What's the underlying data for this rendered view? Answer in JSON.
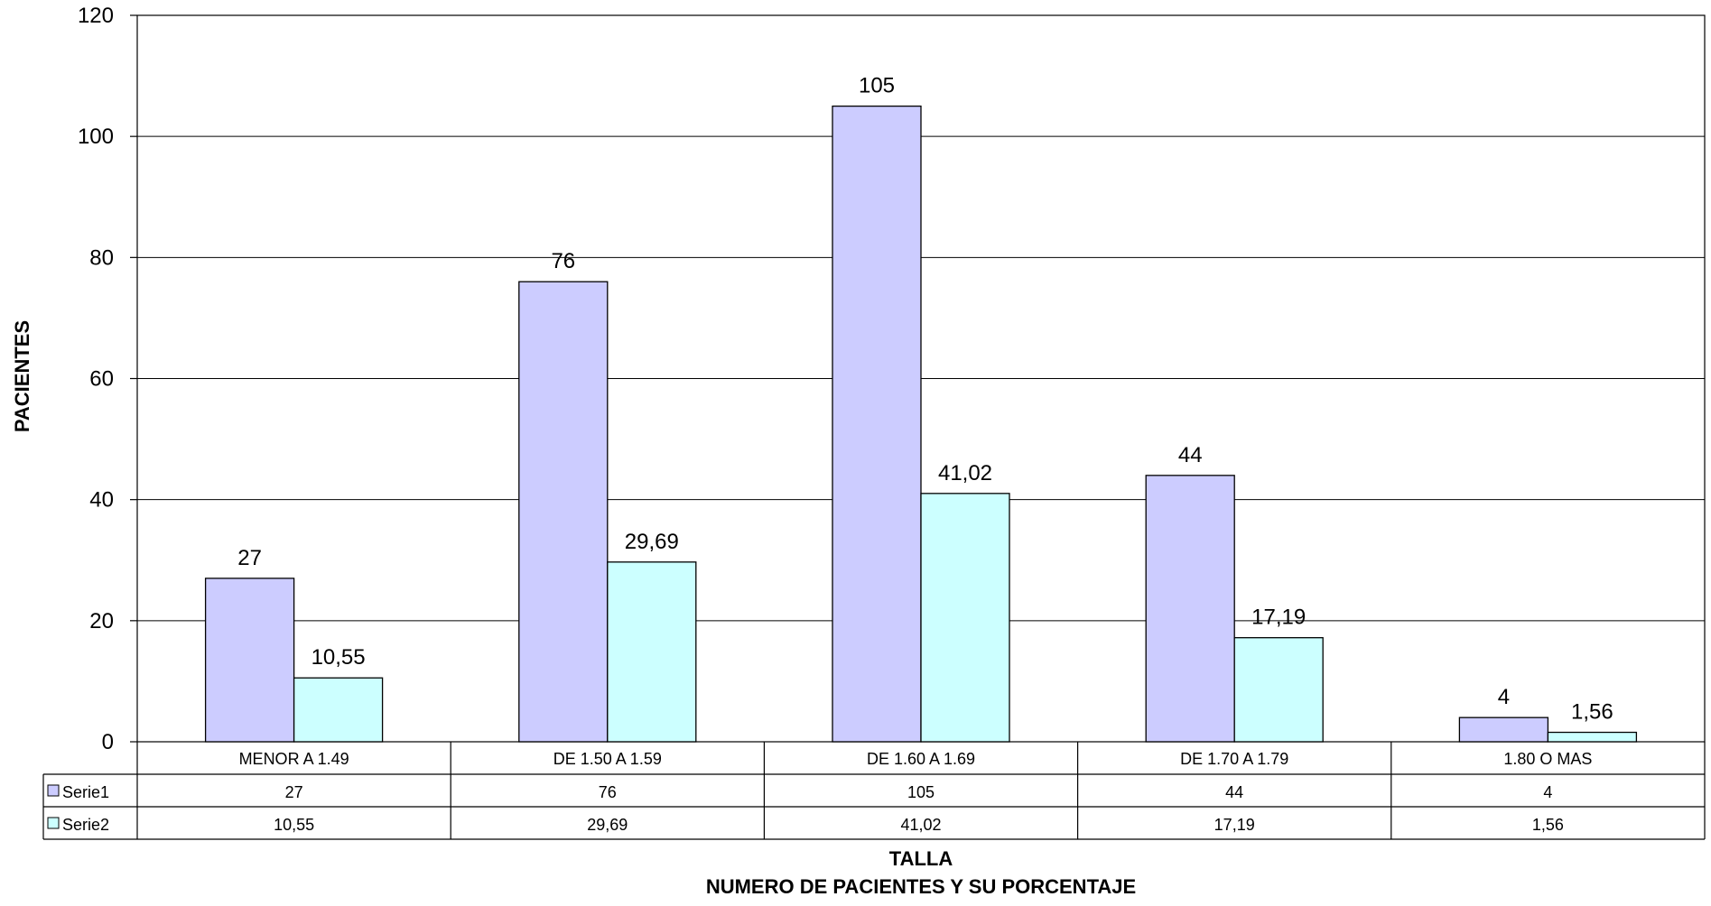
{
  "chart_data": {
    "type": "bar",
    "categories": [
      "MENOR A 1.49",
      "DE 1.50 A 1.59",
      "DE 1.60 A 1.69",
      "DE 1.70 A 1.79",
      "1.80 O MAS"
    ],
    "series": [
      {
        "name": "Serie1",
        "values": [
          27,
          76,
          105,
          44,
          4
        ],
        "labels": [
          "27",
          "76",
          "105",
          "44",
          "4"
        ],
        "color": "#ccccff"
      },
      {
        "name": "Serie2",
        "values": [
          10.55,
          29.69,
          41.02,
          17.19,
          1.56
        ],
        "labels": [
          "10,55",
          "29,69",
          "41,02",
          "17,19",
          "1,56"
        ],
        "color": "#ccffff"
      }
    ],
    "ylabel": "PACIENTES",
    "xlabel": "TALLA",
    "xlabel2": "NUMERO DE PACIENTES Y SU PORCENTAJE",
    "ylim": [
      0,
      120
    ],
    "yticks": [
      0,
      20,
      40,
      60,
      80,
      100,
      120
    ],
    "grid": true,
    "data_table": true
  }
}
